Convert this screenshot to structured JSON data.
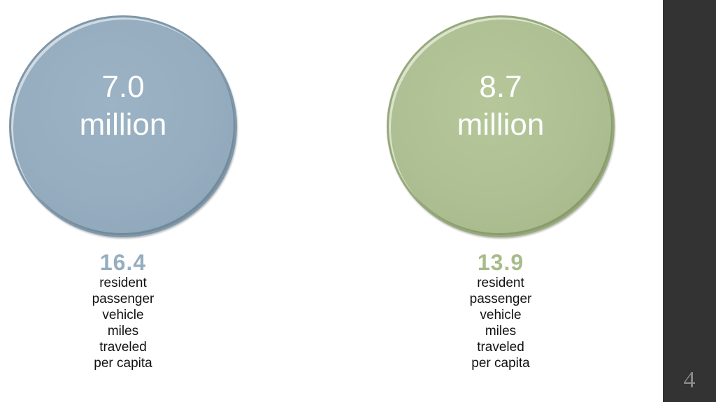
{
  "stats": [
    {
      "circle_value": "7.0",
      "circle_unit": "million",
      "caption_value": "16.4",
      "caption_lines": [
        "resident",
        "passenger",
        "vehicle",
        "miles",
        "traveled",
        "per capita"
      ],
      "circle_color": "#95adbf"
    },
    {
      "circle_value": "8.7",
      "circle_unit": "million",
      "caption_value": "13.9",
      "caption_lines": [
        "resident",
        "passenger",
        "vehicle",
        "miles",
        "traveled",
        "per capita"
      ],
      "circle_color": "#aec093"
    }
  ],
  "slide_number": "4",
  "colors": {
    "side_bar": "#333333",
    "blue_accent": "#95adbf",
    "green_accent": "#a8bb8a"
  }
}
